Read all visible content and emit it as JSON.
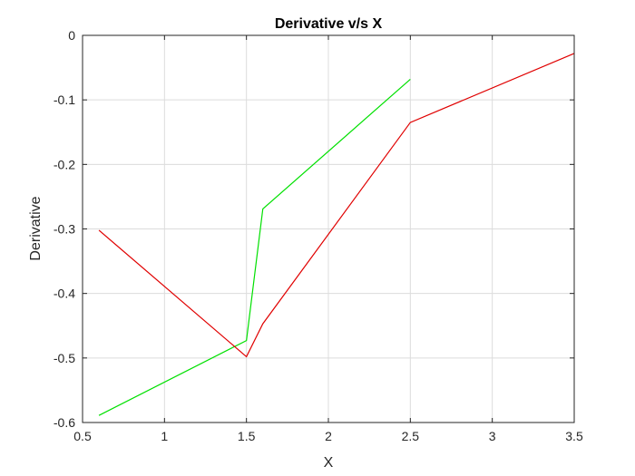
{
  "chart_data": {
    "type": "line",
    "title": "Derivative v/s X",
    "xlabel": "X",
    "ylabel": "Derivative",
    "xlim": [
      0.5,
      3.5
    ],
    "ylim": [
      -0.6,
      0
    ],
    "grid": true,
    "x_ticks": [
      0.5,
      1,
      1.5,
      2,
      2.5,
      3,
      3.5
    ],
    "x_tick_labels": [
      "0.5",
      "1",
      "1.5",
      "2",
      "2.5",
      "3",
      "3.5"
    ],
    "y_ticks": [
      0,
      -0.1,
      -0.2,
      -0.3,
      -0.4,
      -0.5,
      -0.6
    ],
    "y_tick_labels": [
      "0",
      "-0.1",
      "-0.2",
      "-0.3",
      "-0.4",
      "-0.5",
      "-0.6"
    ],
    "series": [
      {
        "color": "#00e000",
        "x": [
          0.6,
          1.5,
          1.6,
          2.5
        ],
        "y": [
          -0.589,
          -0.473,
          -0.269,
          -0.068
        ]
      },
      {
        "color": "#e00000",
        "x": [
          0.6,
          1.5,
          1.6,
          2.5,
          3.5
        ],
        "y": [
          -0.302,
          -0.498,
          -0.447,
          -0.135,
          -0.028
        ]
      }
    ]
  }
}
